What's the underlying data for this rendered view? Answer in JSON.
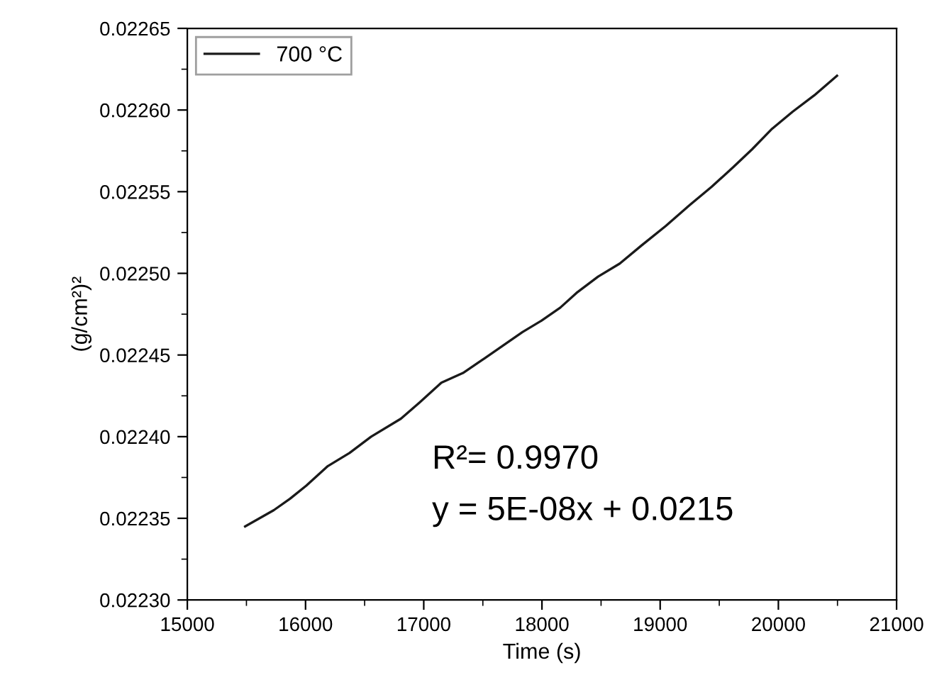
{
  "chart_data": {
    "type": "line",
    "xlabel": "Time (s)",
    "ylabel": "(g/cm²)²",
    "xlim": [
      15000,
      21000
    ],
    "xticks": [
      15000,
      16000,
      17000,
      18000,
      19000,
      20000,
      21000
    ],
    "ylim": [
      0.0223,
      0.02265
    ],
    "yticks": [
      {
        "value": 0.0223,
        "label": "0.02230"
      },
      {
        "value": 0.02235,
        "label": "0.02235"
      },
      {
        "value": 0.0224,
        "label": "0.02240"
      },
      {
        "value": 0.02245,
        "label": "0.02245"
      },
      {
        "value": 0.0225,
        "label": "0.02250"
      },
      {
        "value": 0.02255,
        "label": "0.02255"
      },
      {
        "value": 0.0226,
        "label": "0.02260"
      },
      {
        "value": 0.02265,
        "label": "0.02265"
      }
    ],
    "grid": false,
    "legend": "top left",
    "marker": "none",
    "line_style": "solid",
    "annotations": [
      "R²= 0.9970",
      "y = 5E-08x + 0.0215"
    ],
    "series": [
      {
        "name": "700 °C",
        "color": "#1a1a1a",
        "x": [
          15489,
          15732,
          15869,
          16006,
          16189,
          16372,
          16555,
          16807,
          16966,
          17149,
          17332,
          17515,
          17675,
          17835,
          17995,
          18155,
          18292,
          18475,
          18658,
          18841,
          19047,
          19253,
          19435,
          19618,
          19778,
          19939,
          20121,
          20304,
          20496
        ],
        "values": [
          0.022345,
          0.022355,
          0.022362,
          0.02237,
          0.022382,
          0.02239,
          0.0224,
          0.022411,
          0.022421,
          0.022433,
          0.022439,
          0.022448,
          0.022456,
          0.022464,
          0.022471,
          0.022479,
          0.022488,
          0.022498,
          0.022506,
          0.022517,
          0.022529,
          0.022542,
          0.022553,
          0.022565,
          0.022576,
          0.022588,
          0.022599,
          0.022609,
          0.022621
        ]
      }
    ]
  }
}
